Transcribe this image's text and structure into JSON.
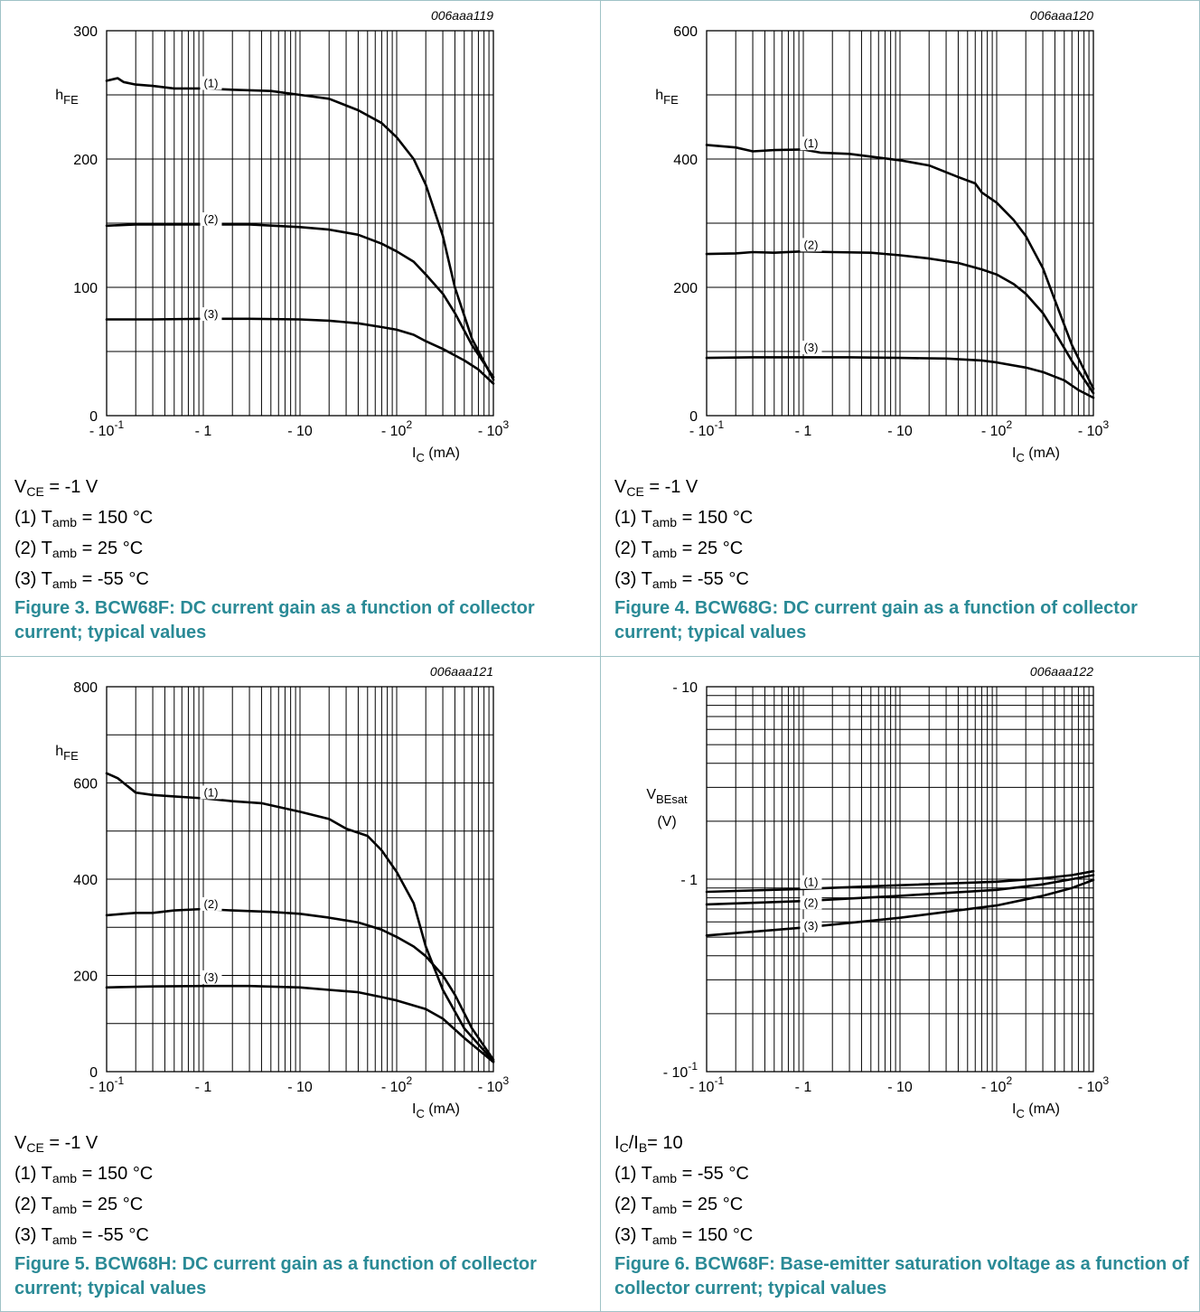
{
  "chart_data": [
    {
      "type": "line",
      "code": "006aaa119",
      "ylabel": "h",
      "ylabel_sub": "FE",
      "yunit": "",
      "xlabel": "I",
      "xlabel_sub": "C",
      "xunit": " (mA)",
      "x_scale": "log",
      "y_scale": "linear",
      "xlim": [
        0.1,
        1000
      ],
      "ylim": [
        0,
        300
      ],
      "y_tick_values": [
        0,
        100,
        200,
        300
      ],
      "y_tick_labels": [
        "0",
        "100",
        "200",
        "300"
      ],
      "y_minor": [
        50,
        150,
        250
      ],
      "x_tick_values": [
        0.1,
        1,
        10,
        100,
        1000
      ],
      "x_tick_labels": [
        {
          "base": "- 10",
          "sup": "-1"
        },
        {
          "base": "- 1",
          "sup": ""
        },
        {
          "base": "- 10",
          "sup": ""
        },
        {
          "base": "- 10",
          "sup": "2"
        },
        {
          "base": "- 10",
          "sup": "3"
        }
      ],
      "series": [
        {
          "name": "(1)",
          "label_at": [
            1.2,
            256
          ],
          "points": [
            [
              0.1,
              261
            ],
            [
              0.13,
              263
            ],
            [
              0.15,
              260
            ],
            [
              0.2,
              258
            ],
            [
              0.3,
              257
            ],
            [
              0.5,
              255
            ],
            [
              1,
              255
            ],
            [
              2,
              254
            ],
            [
              5,
              253
            ],
            [
              10,
              250
            ],
            [
              20,
              247
            ],
            [
              40,
              238
            ],
            [
              70,
              228
            ],
            [
              100,
              217
            ],
            [
              150,
              200
            ],
            [
              200,
              180
            ],
            [
              300,
              140
            ],
            [
              400,
              100
            ],
            [
              600,
              60
            ],
            [
              1000,
              28
            ]
          ]
        },
        {
          "name": "(2)",
          "label_at": [
            1.2,
            150
          ],
          "points": [
            [
              0.1,
              148
            ],
            [
              0.2,
              149
            ],
            [
              0.5,
              149
            ],
            [
              1,
              149
            ],
            [
              3,
              149
            ],
            [
              10,
              147
            ],
            [
              20,
              145
            ],
            [
              40,
              141
            ],
            [
              70,
              134
            ],
            [
              100,
              128
            ],
            [
              150,
              120
            ],
            [
              200,
              110
            ],
            [
              300,
              95
            ],
            [
              400,
              80
            ],
            [
              600,
              55
            ],
            [
              1000,
              30
            ]
          ]
        },
        {
          "name": "(3)",
          "label_at": [
            1.2,
            76
          ],
          "points": [
            [
              0.1,
              75
            ],
            [
              0.3,
              75
            ],
            [
              1,
              75.5
            ],
            [
              3,
              75.5
            ],
            [
              10,
              75
            ],
            [
              20,
              74
            ],
            [
              40,
              72
            ],
            [
              70,
              69
            ],
            [
              100,
              67
            ],
            [
              150,
              63
            ],
            [
              200,
              58
            ],
            [
              300,
              52
            ],
            [
              500,
              43
            ],
            [
              700,
              36
            ],
            [
              1000,
              25
            ]
          ]
        }
      ],
      "captions": [
        {
          "pre": "V",
          "sub": "CE",
          "post": " = -1 V"
        },
        {
          "pre": "(1) T",
          "sub": "amb",
          "post": " = 150 °C"
        },
        {
          "pre": "(2) T",
          "sub": "amb",
          "post": " = 25 °C"
        },
        {
          "pre": "(3) T",
          "sub": "amb",
          "post": " = -55 °C"
        }
      ],
      "title": "Figure 3. BCW68F: DC current gain as a function of collector current; typical values"
    },
    {
      "type": "line",
      "code": "006aaa120",
      "ylabel": "h",
      "ylabel_sub": "FE",
      "yunit": "",
      "xlabel": "I",
      "xlabel_sub": "C",
      "xunit": " (mA)",
      "x_scale": "log",
      "y_scale": "linear",
      "xlim": [
        0.1,
        1000
      ],
      "ylim": [
        0,
        600
      ],
      "y_tick_values": [
        0,
        200,
        400,
        600
      ],
      "y_tick_labels": [
        "0",
        "200",
        "400",
        "600"
      ],
      "y_minor": [
        100,
        300,
        500
      ],
      "x_tick_values": [
        0.1,
        1,
        10,
        100,
        1000
      ],
      "x_tick_labels": [
        {
          "base": "- 10",
          "sup": "-1"
        },
        {
          "base": "- 1",
          "sup": ""
        },
        {
          "base": "- 10",
          "sup": ""
        },
        {
          "base": "- 10",
          "sup": "2"
        },
        {
          "base": "- 10",
          "sup": "3"
        }
      ],
      "series": [
        {
          "name": "(1)",
          "label_at": [
            1.2,
            418
          ],
          "points": [
            [
              0.1,
              422
            ],
            [
              0.2,
              418
            ],
            [
              0.3,
              412
            ],
            [
              0.5,
              414
            ],
            [
              1,
              415
            ],
            [
              1.5,
              410
            ],
            [
              3,
              408
            ],
            [
              10,
              398
            ],
            [
              20,
              390
            ],
            [
              40,
              372
            ],
            [
              60,
              362
            ],
            [
              70,
              348
            ],
            [
              100,
              332
            ],
            [
              150,
              305
            ],
            [
              200,
              280
            ],
            [
              300,
              230
            ],
            [
              400,
              180
            ],
            [
              600,
              110
            ],
            [
              1000,
              42
            ]
          ]
        },
        {
          "name": "(2)",
          "label_at": [
            1.2,
            260
          ],
          "points": [
            [
              0.1,
              252
            ],
            [
              0.2,
              253
            ],
            [
              0.3,
              255
            ],
            [
              0.5,
              254
            ],
            [
              1,
              256
            ],
            [
              2,
              255
            ],
            [
              5,
              254
            ],
            [
              10,
              250
            ],
            [
              20,
              245
            ],
            [
              40,
              238
            ],
            [
              70,
              228
            ],
            [
              100,
              220
            ],
            [
              150,
              205
            ],
            [
              200,
              190
            ],
            [
              300,
              160
            ],
            [
              400,
              130
            ],
            [
              600,
              85
            ],
            [
              1000,
              35
            ]
          ]
        },
        {
          "name": "(3)",
          "label_at": [
            1.2,
            100
          ],
          "points": [
            [
              0.1,
              90
            ],
            [
              0.3,
              91
            ],
            [
              1,
              91
            ],
            [
              3,
              91
            ],
            [
              10,
              90
            ],
            [
              30,
              89
            ],
            [
              70,
              86
            ],
            [
              100,
              83
            ],
            [
              200,
              75
            ],
            [
              300,
              68
            ],
            [
              500,
              55
            ],
            [
              700,
              40
            ],
            [
              1000,
              28
            ]
          ]
        }
      ],
      "captions": [
        {
          "pre": "V",
          "sub": "CE",
          "post": " = -1 V"
        },
        {
          "pre": "(1) T",
          "sub": "amb",
          "post": " = 150 °C"
        },
        {
          "pre": "(2) T",
          "sub": "amb",
          "post": " = 25 °C"
        },
        {
          "pre": "(3) T",
          "sub": "amb",
          "post": " = -55 °C"
        }
      ],
      "title": "Figure 4. BCW68G: DC current gain as a function of collector current; typical values"
    },
    {
      "type": "line",
      "code": "006aaa121",
      "ylabel": "h",
      "ylabel_sub": "FE",
      "yunit": "",
      "xlabel": "I",
      "xlabel_sub": "C",
      "xunit": " (mA)",
      "x_scale": "log",
      "y_scale": "linear",
      "xlim": [
        0.1,
        1000
      ],
      "ylim": [
        0,
        800
      ],
      "y_tick_values": [
        0,
        200,
        400,
        600,
        800
      ],
      "y_tick_labels": [
        "0",
        "200",
        "400",
        "600",
        "800"
      ],
      "y_minor": [
        100,
        300,
        500,
        700
      ],
      "x_tick_values": [
        0.1,
        1,
        10,
        100,
        1000
      ],
      "x_tick_labels": [
        {
          "base": "- 10",
          "sup": "-1"
        },
        {
          "base": "- 1",
          "sup": ""
        },
        {
          "base": "- 10",
          "sup": ""
        },
        {
          "base": "- 10",
          "sup": "2"
        },
        {
          "base": "- 10",
          "sup": "3"
        }
      ],
      "series": [
        {
          "name": "(1)",
          "label_at": [
            1.2,
            572
          ],
          "points": [
            [
              0.1,
              620
            ],
            [
              0.13,
              610
            ],
            [
              0.15,
              600
            ],
            [
              0.2,
              580
            ],
            [
              0.3,
              575
            ],
            [
              0.5,
              572
            ],
            [
              1,
              568
            ],
            [
              2,
              562
            ],
            [
              4,
              558
            ],
            [
              10,
              540
            ],
            [
              20,
              525
            ],
            [
              30,
              505
            ],
            [
              50,
              490
            ],
            [
              70,
              460
            ],
            [
              100,
              415
            ],
            [
              150,
              350
            ],
            [
              200,
              260
            ],
            [
              300,
              170
            ],
            [
              500,
              90
            ],
            [
              1000,
              22
            ]
          ]
        },
        {
          "name": "(2)",
          "label_at": [
            1.2,
            340
          ],
          "points": [
            [
              0.1,
              325
            ],
            [
              0.15,
              328
            ],
            [
              0.2,
              330
            ],
            [
              0.3,
              330
            ],
            [
              0.5,
              335
            ],
            [
              1,
              338
            ],
            [
              2,
              335
            ],
            [
              5,
              332
            ],
            [
              10,
              328
            ],
            [
              20,
              320
            ],
            [
              40,
              310
            ],
            [
              70,
              295
            ],
            [
              100,
              280
            ],
            [
              150,
              260
            ],
            [
              200,
              240
            ],
            [
              300,
              200
            ],
            [
              400,
              160
            ],
            [
              600,
              90
            ],
            [
              1000,
              25
            ]
          ]
        },
        {
          "name": "(3)",
          "label_at": [
            1.2,
            188
          ],
          "points": [
            [
              0.1,
              175
            ],
            [
              0.3,
              177
            ],
            [
              1,
              178
            ],
            [
              3,
              178
            ],
            [
              10,
              175
            ],
            [
              20,
              170
            ],
            [
              40,
              165
            ],
            [
              70,
              155
            ],
            [
              100,
              148
            ],
            [
              200,
              130
            ],
            [
              300,
              110
            ],
            [
              500,
              70
            ],
            [
              1000,
              20
            ]
          ]
        }
      ],
      "captions": [
        {
          "pre": "V",
          "sub": "CE",
          "post": " = -1 V"
        },
        {
          "pre": "(1) T",
          "sub": "amb",
          "post": " = 150 °C"
        },
        {
          "pre": "(2) T",
          "sub": "amb",
          "post": " = 25 °C"
        },
        {
          "pre": "(3) T",
          "sub": "amb",
          "post": " = -55 °C"
        }
      ],
      "title": "Figure 5. BCW68H: DC current gain as a function of collector current; typical values"
    },
    {
      "type": "line",
      "code": "006aaa122",
      "ylabel": "V",
      "ylabel_sub": "BEsat",
      "yunit": "(V)",
      "xlabel": "I",
      "xlabel_sub": "C",
      "xunit": " (mA)",
      "x_scale": "log",
      "y_scale": "log",
      "xlim": [
        0.1,
        1000
      ],
      "ylim": [
        0.1,
        10
      ],
      "y_tick_values": [
        0.1,
        1,
        10
      ],
      "y_tick_labels": [
        {
          "base": "- 10",
          "sup": "-1"
        },
        {
          "base": "- 1",
          "sup": ""
        },
        {
          "base": "- 10",
          "sup": ""
        }
      ],
      "y_minor": [],
      "x_tick_values": [
        0.1,
        1,
        10,
        100,
        1000
      ],
      "x_tick_labels": [
        {
          "base": "- 10",
          "sup": "-1"
        },
        {
          "base": "- 1",
          "sup": ""
        },
        {
          "base": "- 10",
          "sup": ""
        },
        {
          "base": "- 10",
          "sup": "2"
        },
        {
          "base": "- 10",
          "sup": "3"
        }
      ],
      "series": [
        {
          "name": "(1)",
          "label_at": [
            1.2,
            0.92
          ],
          "points": [
            [
              0.1,
              0.86
            ],
            [
              1,
              0.89
            ],
            [
              10,
              0.93
            ],
            [
              100,
              0.97
            ],
            [
              300,
              1.01
            ],
            [
              600,
              1.05
            ],
            [
              1000,
              1.1
            ]
          ]
        },
        {
          "name": "(2)",
          "label_at": [
            1.2,
            0.72
          ],
          "points": [
            [
              0.1,
              0.74
            ],
            [
              1,
              0.77
            ],
            [
              10,
              0.82
            ],
            [
              100,
              0.88
            ],
            [
              300,
              0.94
            ],
            [
              600,
              1.0
            ],
            [
              1000,
              1.05
            ]
          ]
        },
        {
          "name": "(3)",
          "label_at": [
            1.2,
            0.545
          ],
          "points": [
            [
              0.1,
              0.51
            ],
            [
              1,
              0.56
            ],
            [
              10,
              0.63
            ],
            [
              100,
              0.73
            ],
            [
              300,
              0.82
            ],
            [
              600,
              0.9
            ],
            [
              1000,
              0.99
            ]
          ]
        }
      ],
      "captions": [
        {
          "pre": "I",
          "sub": "C",
          "post": "/I",
          "sub2": "B",
          "post2": "= 10"
        },
        {
          "pre": "(1) T",
          "sub": "amb",
          "post": " = -55 °C"
        },
        {
          "pre": "(2) T",
          "sub": "amb",
          "post": " = 25 °C"
        },
        {
          "pre": "(3) T",
          "sub": "amb",
          "post": " = 150 °C"
        }
      ],
      "title": "Figure 6. BCW68F: Base-emitter saturation voltage as a function of collector current; typical values"
    }
  ]
}
